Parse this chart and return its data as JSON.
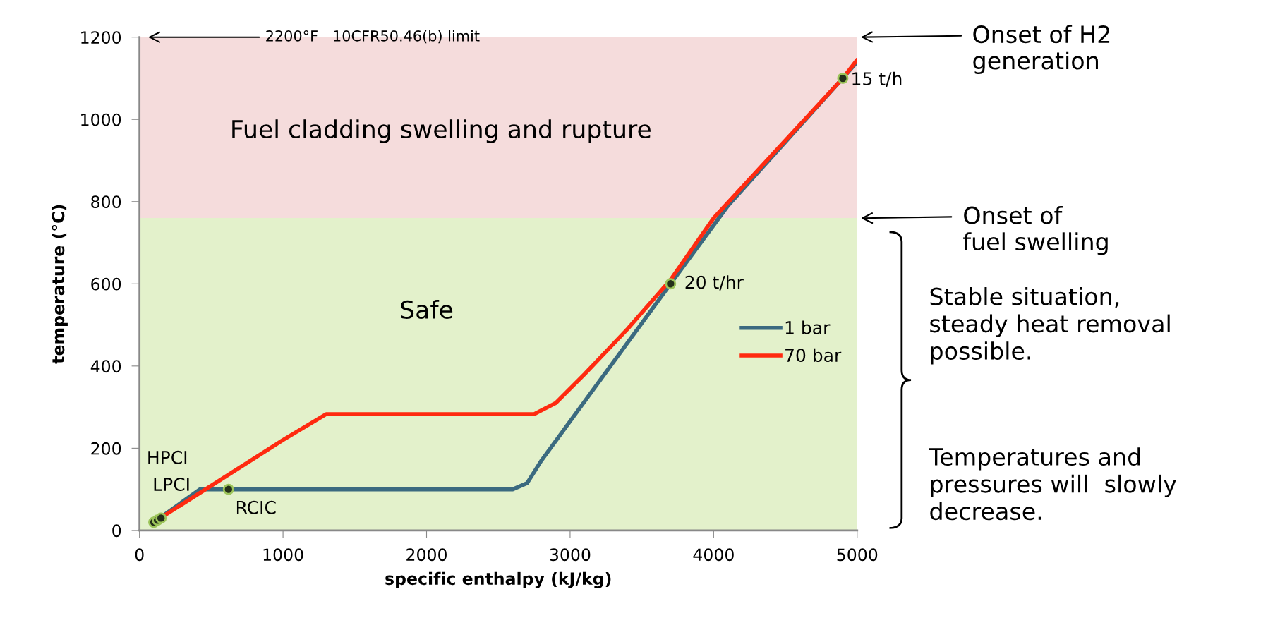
{
  "chart_data": {
    "type": "line",
    "xlabel": "specific enthalpy (kJ/kg)",
    "ylabel": "temperature (°C)",
    "xlim": [
      0,
      5000
    ],
    "xticks": [
      0,
      1000,
      2000,
      3000,
      4000,
      5000
    ],
    "ylim": [
      0,
      1200
    ],
    "yticks": [
      0,
      200,
      400,
      600,
      800,
      1000,
      1200
    ],
    "grid": false,
    "legend": "right",
    "line_style": "solid",
    "series": [
      {
        "name": "1 bar",
        "color": "#3b6a80",
        "marker": "none",
        "x": [
          100,
          420,
          2600,
          2700,
          2800,
          3700,
          4100,
          4900,
          5000
        ],
        "values": [
          20,
          100,
          100,
          115,
          170,
          600,
          790,
          1100,
          1140
        ]
      },
      {
        "name": "70 bar",
        "color": "#ff2a10",
        "marker": "none",
        "x": [
          100,
          1000,
          1300,
          2750,
          2900,
          3100,
          3400,
          3700,
          4000,
          4900,
          5000
        ],
        "values": [
          20,
          220,
          283,
          283,
          310,
          380,
          490,
          610,
          760,
          1100,
          1145
        ]
      },
      {
        "type": "scatter",
        "color": "#24301a",
        "marker": "circle",
        "x": [
          100,
          125,
          150,
          620,
          3700,
          4900
        ],
        "values": [
          20,
          25,
          30,
          100,
          600,
          1100
        ]
      }
    ],
    "bands": [
      {
        "axis": "y",
        "from": 0,
        "to": 760,
        "label": "Safe",
        "color": "#e3f1cb"
      },
      {
        "axis": "y",
        "from": 760,
        "to": 1200,
        "label": "Fuel cladding swelling and rupture",
        "color": "#f5dcdc"
      }
    ],
    "annotations": [
      "2200°F   10CFR50.46(b) limit",
      "Onset of H2\ngeneration",
      "Onset of\nfuel swelling",
      "Stable situation,\nsteady heat removal\npossible.",
      "Temperatures and\npressures will  slowly\ndecrease.",
      "HPCI",
      {
        "text": "LPCI",
        "x": 125,
        "y": 25
      },
      {
        "text": "RCIC",
        "x": 620,
        "y": 100
      },
      {
        "text": "20 t/hr",
        "x": 3700,
        "y": 600
      },
      {
        "text": "15 t/h",
        "x": 4900,
        "y": 1100
      }
    ]
  }
}
